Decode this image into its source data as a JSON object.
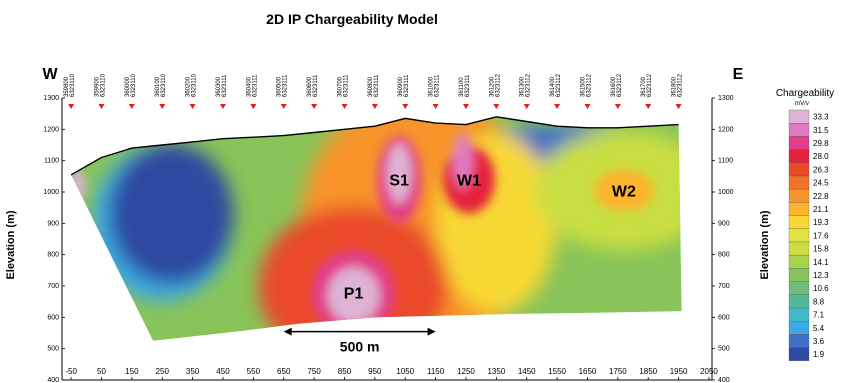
{
  "chart_data": {
    "type": "heatmap",
    "title": "2D IP Chargeability Model",
    "direction_left": "W",
    "direction_right": "E",
    "ylabel": "Elevation (m)",
    "xlim": [
      -80,
      2060
    ],
    "ylim": [
      400,
      1300
    ],
    "x_ticks": [
      -50,
      50,
      150,
      250,
      350,
      450,
      550,
      650,
      750,
      850,
      950,
      1050,
      1150,
      1250,
      1350,
      1450,
      1550,
      1650,
      1750,
      1850,
      1950,
      2050
    ],
    "y_ticks": [
      400,
      500,
      600,
      700,
      800,
      900,
      1000,
      1100,
      1200,
      1300
    ],
    "stations": [
      {
        "east": "359800",
        "north": "6323110",
        "x": -50,
        "z": 1055
      },
      {
        "east": "359900",
        "north": "6323110",
        "x": 50,
        "z": 1110
      },
      {
        "east": "360000",
        "north": "6323110",
        "x": 150,
        "z": 1140
      },
      {
        "east": "360100",
        "north": "6323110",
        "x": 250,
        "z": 1150
      },
      {
        "east": "360200",
        "north": "6323110",
        "x": 350,
        "z": 1160
      },
      {
        "east": "360300",
        "north": "6323111",
        "x": 450,
        "z": 1170
      },
      {
        "east": "360400",
        "north": "6323111",
        "x": 550,
        "z": 1175
      },
      {
        "east": "360500",
        "north": "6323111",
        "x": 650,
        "z": 1180
      },
      {
        "east": "360600",
        "north": "6323111",
        "x": 750,
        "z": 1190
      },
      {
        "east": "360700",
        "north": "6323111",
        "x": 850,
        "z": 1200
      },
      {
        "east": "360800",
        "north": "6323111",
        "x": 950,
        "z": 1210
      },
      {
        "east": "360900",
        "north": "6323111",
        "x": 1050,
        "z": 1235
      },
      {
        "east": "361000",
        "north": "6323111",
        "x": 1150,
        "z": 1220
      },
      {
        "east": "361100",
        "north": "6323111",
        "x": 1250,
        "z": 1215
      },
      {
        "east": "361200",
        "north": "6323112",
        "x": 1350,
        "z": 1240
      },
      {
        "east": "361300",
        "north": "6323112",
        "x": 1450,
        "z": 1225
      },
      {
        "east": "361400",
        "north": "6323112",
        "x": 1550,
        "z": 1210
      },
      {
        "east": "361500",
        "north": "6323112",
        "x": 1650,
        "z": 1205
      },
      {
        "east": "361600",
        "north": "6323112",
        "x": 1750,
        "z": 1205
      },
      {
        "east": "361700",
        "north": "6323112",
        "x": 1850,
        "z": 1210
      },
      {
        "east": "361800",
        "north": "6323112",
        "x": 1950,
        "z": 1215
      }
    ],
    "bottom_boundary": [
      {
        "x": 220,
        "z": 525
      },
      {
        "x": 500,
        "z": 555
      },
      {
        "x": 700,
        "z": 580
      },
      {
        "x": 950,
        "z": 600
      },
      {
        "x": 1150,
        "z": 605
      },
      {
        "x": 1350,
        "z": 610
      },
      {
        "x": 1700,
        "z": 615
      },
      {
        "x": 1960,
        "z": 620
      }
    ],
    "anomalies": [
      {
        "label": "S1",
        "x": 1030,
        "z": 1040,
        "value": 33.3
      },
      {
        "label": "W1",
        "x": 1260,
        "z": 1040,
        "value": 31.5
      },
      {
        "label": "W2",
        "x": 1770,
        "z": 1005,
        "value": 21.1
      },
      {
        "label": "P1",
        "x": 880,
        "z": 680,
        "value": 33.3
      }
    ],
    "scale_bar": {
      "label": "500 m",
      "x_start": 650,
      "x_end": 1150,
      "z": 580
    },
    "colorbar": {
      "title": "Chargeability",
      "unit": "mV/v",
      "labels": [
        "33.3",
        "31.5",
        "29.8",
        "28.0",
        "26.3",
        "24.5",
        "22.8",
        "21.1",
        "19.3",
        "17.6",
        "15.8",
        "14.1",
        "12.3",
        "10.6",
        "8.8",
        "7.1",
        "5.4",
        "3.6",
        "1.9"
      ],
      "values": [
        33.3,
        31.5,
        29.8,
        28.0,
        26.3,
        24.5,
        22.8,
        21.1,
        19.3,
        17.6,
        15.8,
        14.1,
        12.3,
        10.6,
        8.8,
        7.1,
        5.4,
        3.6,
        1.9
      ],
      "colors": [
        "#ddb3d6",
        "#e17ac2",
        "#e23f8a",
        "#e5213c",
        "#ea4a2a",
        "#f0722b",
        "#f7942c",
        "#fdb32c",
        "#f7d836",
        "#e4e33d",
        "#c9de43",
        "#a9d14c",
        "#88c459",
        "#6fbd78",
        "#52b897",
        "#43b8c9",
        "#3aa9e4",
        "#3f6fc9",
        "#2f4aa1"
      ]
    }
  }
}
